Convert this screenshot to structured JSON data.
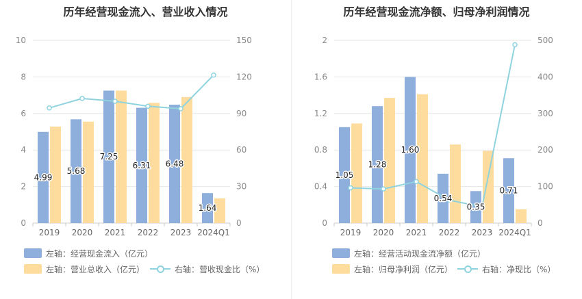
{
  "chart_data": [
    {
      "type": "bar",
      "title": "历年经营现金流入、营业收入情况",
      "categories": [
        "2019",
        "2020",
        "2021",
        "2022",
        "2023",
        "2024Q1"
      ],
      "left_axis": {
        "ylim": [
          0,
          10
        ],
        "ticks": [
          "0",
          "2",
          "4",
          "6",
          "8",
          "10"
        ]
      },
      "right_axis": {
        "ylim": [
          0,
          150
        ],
        "ticks": [
          "0",
          "30",
          "60",
          "90",
          "120",
          "150"
        ]
      },
      "series": [
        {
          "name": "左轴：经营现金流入（亿元）",
          "kind": "bar",
          "axis": "left",
          "color": "#8eaedc",
          "values": [
            4.99,
            5.68,
            7.25,
            6.31,
            6.48,
            1.64
          ],
          "labels": [
            "4.99",
            "5.68",
            "7.25",
            "6.31",
            "6.48",
            "1.64"
          ]
        },
        {
          "name": "左轴：营业总收入（亿元）",
          "kind": "bar",
          "axis": "left",
          "color": "#fedc9d",
          "values": [
            5.28,
            5.55,
            7.25,
            6.58,
            6.9,
            1.35
          ]
        },
        {
          "name": "右轴：营收现金比（%）",
          "kind": "line",
          "axis": "right",
          "color": "#8fd3df",
          "values": [
            94.5,
            102.3,
            100.0,
            95.9,
            93.9,
            121.5
          ]
        }
      ],
      "grid": true,
      "legend_position": "bottom-left"
    },
    {
      "type": "bar",
      "title": "历年经营现金流净额、归母净利润情况",
      "categories": [
        "2019",
        "2020",
        "2021",
        "2022",
        "2023",
        "2024Q1"
      ],
      "left_axis": {
        "ylim": [
          0,
          2
        ],
        "ticks": [
          "0",
          "0.4",
          "0.8",
          "1.2",
          "1.6",
          "2"
        ]
      },
      "right_axis": {
        "ylim": [
          0,
          500
        ],
        "ticks": [
          "0",
          "100",
          "200",
          "300",
          "400",
          "500"
        ]
      },
      "series": [
        {
          "name": "左轴：经营活动现金流净额（亿元）",
          "kind": "bar",
          "axis": "left",
          "color": "#8eaedc",
          "values": [
            1.05,
            1.28,
            1.6,
            0.54,
            0.35,
            0.71
          ],
          "labels": [
            "1.05",
            "1.28",
            "1.60",
            "0.54",
            "0.35",
            "0.71"
          ]
        },
        {
          "name": "左轴：归母净利润（亿元）",
          "kind": "bar",
          "axis": "left",
          "color": "#fedc9d",
          "values": [
            1.09,
            1.37,
            1.41,
            0.86,
            0.79,
            0.15
          ]
        },
        {
          "name": "右轴：净现比（%）",
          "kind": "line",
          "axis": "right",
          "color": "#8fd3df",
          "values": [
            96.3,
            93.4,
            113.5,
            62.8,
            44.3,
            488.0
          ]
        }
      ],
      "grid": true,
      "legend_position": "bottom-left"
    }
  ]
}
